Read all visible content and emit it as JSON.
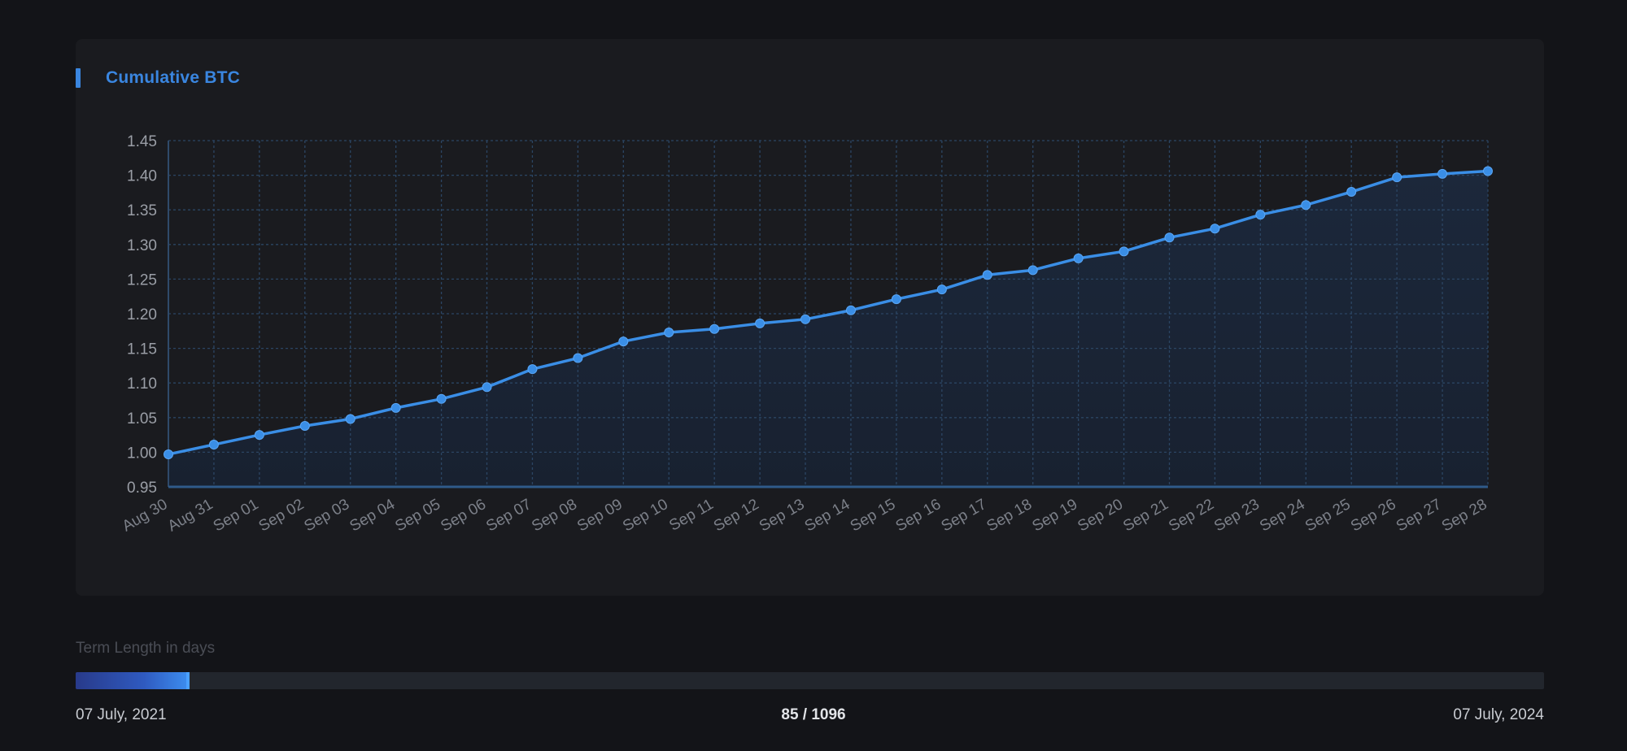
{
  "card": {
    "title": "Cumulative BTC"
  },
  "chart_data": {
    "type": "area",
    "title": "Cumulative BTC",
    "xlabel": "",
    "ylabel": "",
    "ylim": [
      0.95,
      1.45
    ],
    "yticks": [
      "0.95",
      "1.00",
      "1.05",
      "1.10",
      "1.15",
      "1.20",
      "1.25",
      "1.30",
      "1.35",
      "1.40",
      "1.45"
    ],
    "grid": true,
    "categories": [
      "Aug 30",
      "Aug 31",
      "Sep 01",
      "Sep 02",
      "Sep 03",
      "Sep 04",
      "Sep 05",
      "Sep 06",
      "Sep 07",
      "Sep 08",
      "Sep 09",
      "Sep 10",
      "Sep 11",
      "Sep 12",
      "Sep 13",
      "Sep 14",
      "Sep 15",
      "Sep 16",
      "Sep 17",
      "Sep 18",
      "Sep 19",
      "Sep 20",
      "Sep 21",
      "Sep 22",
      "Sep 23",
      "Sep 24",
      "Sep 25",
      "Sep 26",
      "Sep 27",
      "Sep 28"
    ],
    "values": [
      0.997,
      1.011,
      1.025,
      1.038,
      1.048,
      1.064,
      1.077,
      1.094,
      1.12,
      1.136,
      1.16,
      1.173,
      1.178,
      1.186,
      1.192,
      1.205,
      1.221,
      1.235,
      1.256,
      1.263,
      1.28,
      1.29,
      1.31,
      1.323,
      1.343,
      1.357,
      1.376,
      1.397,
      1.402,
      1.406
    ],
    "color": "#3a8ee6"
  },
  "slider": {
    "label": "Term Length in days",
    "value": 85,
    "max": 1096,
    "value_text": "85 / 1096",
    "start_date": "07 July, 2021",
    "end_date": "07 July, 2024"
  }
}
